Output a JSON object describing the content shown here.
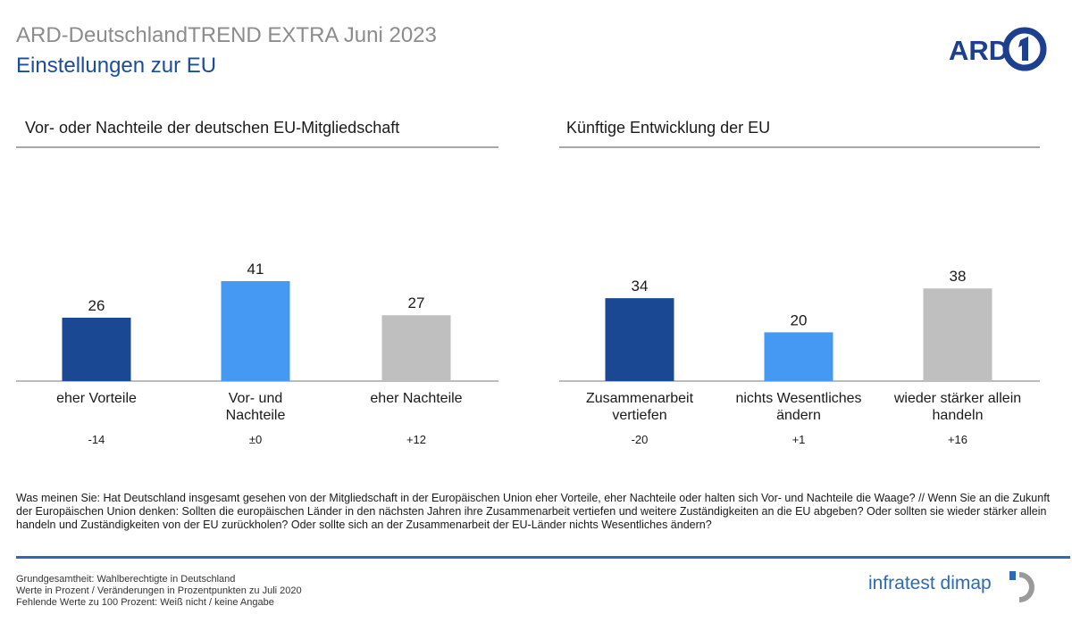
{
  "header": {
    "title": "ARD-DeutschlandTREND EXTRA Juni 2023",
    "subtitle": "Einstellungen zur EU",
    "logo_text": "ARD"
  },
  "chart_data": [
    {
      "type": "bar",
      "title": "Vor- oder Nachteile der deutschen EU-Mitgliedschaft",
      "categories": [
        "eher Vorteile",
        "Vor- und Nachteile",
        "eher Nachteile"
      ],
      "values": [
        26,
        41,
        27
      ],
      "changes": [
        "-14",
        "±0",
        "+12"
      ],
      "colors": [
        "#1a4893",
        "#4699f2",
        "#bfbfbf"
      ],
      "ylim": [
        0,
        41
      ]
    },
    {
      "type": "bar",
      "title": "Künftige Entwicklung der EU",
      "categories": [
        "Zusammenarbeit vertiefen",
        "nichts Wesentliches ändern",
        "wieder stärker allein handeln"
      ],
      "values": [
        34,
        20,
        38
      ],
      "changes": [
        "-20",
        "+1",
        "+16"
      ],
      "colors": [
        "#1a4893",
        "#4699f2",
        "#bfbfbf"
      ],
      "ylim": [
        0,
        41
      ]
    }
  ],
  "question": "Was meinen Sie: Hat Deutschland insgesamt gesehen von der Mitgliedschaft in der Europäischen Union eher Vorteile, eher Nachteile oder halten sich Vor- und Nachteile die Waage? // Wenn Sie an die Zukunft der Europäischen Union denken: Sollten die europäischen Länder in den nächsten Jahren ihre Zusammenarbeit vertiefen und weitere Zuständigkeiten an die EU abgeben? Oder sollten sie wieder stärker allein handeln und Zuständigkeiten von der EU zurückholen? Oder sollte sich an der Zusammenarbeit der EU-Länder nichts Wesentliches ändern?",
  "footer": {
    "notes": [
      "Grundgesamtheit: Wahlberechtigte in Deutschland",
      "Werte in Prozent / Veränderungen in Prozentpunkten zu Juli 2020",
      "Fehlende Werte zu 100 Prozent: Weiß nicht / keine Angabe"
    ],
    "brand": "infratest dimap"
  }
}
